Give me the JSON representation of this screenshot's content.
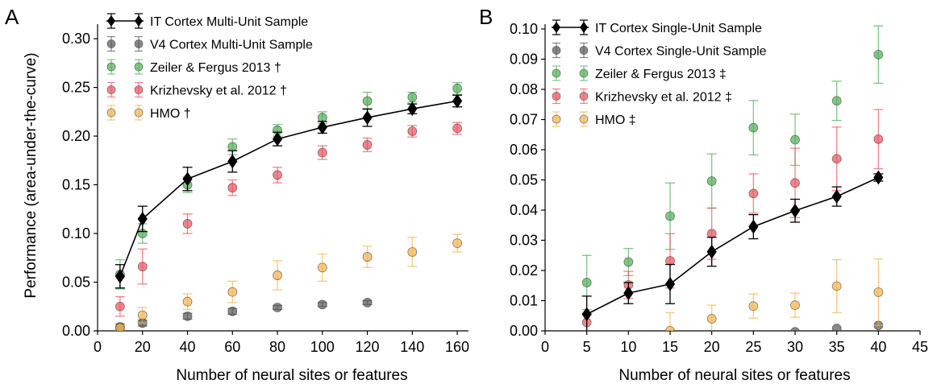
{
  "chart_data": [
    {
      "panel": "A",
      "type": "scatter",
      "xlabel": "Number of neural sites or features",
      "ylabel": "Performance (area-under-the-curve)",
      "xlim": [
        0,
        165
      ],
      "ylim": [
        0,
        0.31
      ],
      "xticks": [
        0,
        20,
        40,
        60,
        80,
        100,
        120,
        140,
        160
      ],
      "yticks": [
        0.0,
        0.05,
        0.1,
        0.15,
        0.2,
        0.25,
        0.3
      ],
      "xtick_labels": [
        "0",
        "20",
        "40",
        "60",
        "80",
        "100",
        "120",
        "140",
        "160"
      ],
      "ytick_labels": [
        "0.00",
        "0.05",
        "0.10",
        "0.15",
        "0.20",
        "0.25",
        "0.30"
      ],
      "legend_position": "top-left",
      "series": [
        {
          "name": "IT Cortex Multi-Unit Sample",
          "color": "#000000",
          "marker": "diamond",
          "line": true,
          "x": [
            10,
            20,
            40,
            60,
            80,
            100,
            120,
            140,
            160
          ],
          "y": [
            0.056,
            0.115,
            0.156,
            0.174,
            0.197,
            0.209,
            0.219,
            0.228,
            0.236
          ],
          "err": [
            0.012,
            0.013,
            0.012,
            0.011,
            0.007,
            0.006,
            0.009,
            0.005,
            0.006
          ]
        },
        {
          "name": "V4 Cortex Multi-Unit Sample",
          "color": "#555555",
          "marker": "circle",
          "line": false,
          "x": [
            10,
            20,
            40,
            60,
            80,
            100,
            120
          ],
          "y": [
            0.004,
            0.008,
            0.015,
            0.02,
            0.024,
            0.027,
            0.029
          ],
          "err": [
            0.003,
            0.003,
            0.003,
            0.003,
            0.002,
            0.002,
            0.002
          ]
        },
        {
          "name": "Zeiler & Fergus 2013 †",
          "color": "#4CAF50",
          "marker": "circle",
          "line": false,
          "x": [
            10,
            20,
            40,
            60,
            80,
            100,
            120,
            140,
            160
          ],
          "y": [
            0.058,
            0.1,
            0.15,
            0.189,
            0.206,
            0.219,
            0.236,
            0.24,
            0.249
          ],
          "err": [
            0.015,
            0.01,
            0.008,
            0.008,
            0.006,
            0.006,
            0.009,
            0.005,
            0.006
          ]
        },
        {
          "name": "Krizhevsky et al. 2012 †",
          "color": "#F0505A",
          "marker": "circle",
          "line": false,
          "x": [
            10,
            20,
            40,
            60,
            80,
            100,
            120,
            140,
            160
          ],
          "y": [
            0.025,
            0.066,
            0.11,
            0.147,
            0.16,
            0.183,
            0.191,
            0.205,
            0.208
          ],
          "err": [
            0.01,
            0.018,
            0.01,
            0.008,
            0.008,
            0.007,
            0.007,
            0.006,
            0.006
          ]
        },
        {
          "name": "HMO †",
          "color": "#F8B24A",
          "marker": "circle",
          "line": false,
          "x": [
            10,
            20,
            40,
            60,
            80,
            100,
            120,
            140,
            160
          ],
          "y": [
            0.003,
            0.016,
            0.03,
            0.04,
            0.057,
            0.065,
            0.076,
            0.081,
            0.09
          ],
          "err": [
            0.003,
            0.008,
            0.008,
            0.011,
            0.015,
            0.014,
            0.011,
            0.015,
            0.009
          ]
        }
      ]
    },
    {
      "panel": "B",
      "type": "scatter",
      "xlabel": "Number of neural sites or features",
      "ylabel": "",
      "xlim": [
        0,
        45
      ],
      "ylim": [
        0,
        0.1
      ],
      "xticks": [
        0,
        5,
        10,
        15,
        20,
        25,
        30,
        35,
        40,
        45
      ],
      "yticks": [
        0.0,
        0.01,
        0.02,
        0.03,
        0.04,
        0.05,
        0.06,
        0.07,
        0.08,
        0.09,
        0.1
      ],
      "xtick_labels": [
        "0",
        "5",
        "10",
        "15",
        "20",
        "25",
        "30",
        "35",
        "40",
        "45"
      ],
      "ytick_labels": [
        "0.00",
        "0.01",
        "0.02",
        "0.03",
        "0.04",
        "0.05",
        "0.06",
        "0.07",
        "0.08",
        "0.09",
        "0.10"
      ],
      "legend_position": "top-left",
      "series": [
        {
          "name": "IT Cortex Single-Unit Sample",
          "color": "#000000",
          "marker": "diamond",
          "line": true,
          "x": [
            5,
            10,
            15,
            20,
            25,
            30,
            35,
            40
          ],
          "y": [
            0.0055,
            0.0125,
            0.0155,
            0.0262,
            0.0345,
            0.0398,
            0.0445,
            0.0508
          ],
          "err": [
            0.006,
            0.0035,
            0.0065,
            0.0048,
            0.004,
            0.0038,
            0.0032,
            0.0012
          ]
        },
        {
          "name": "V4 Cortex Single-Unit Sample",
          "color": "#555555",
          "marker": "circle",
          "line": false,
          "x": [
            30,
            35,
            40
          ],
          "y": [
            -0.0003,
            0.0008,
            0.0018
          ],
          "err": [
            0.0,
            0.0,
            0.0
          ]
        },
        {
          "name": "Zeiler & Fergus 2013 ‡",
          "color": "#4CAF50",
          "marker": "circle",
          "line": false,
          "x": [
            5,
            10,
            15,
            20,
            25,
            30,
            35,
            40
          ],
          "y": [
            0.016,
            0.0228,
            0.038,
            0.0496,
            0.0673,
            0.0633,
            0.0762,
            0.0915
          ],
          "err": [
            0.009,
            0.0045,
            0.011,
            0.009,
            0.009,
            0.0085,
            0.0065,
            0.0095
          ]
        },
        {
          "name": "Krizhevsky et al. 2012 ‡",
          "color": "#F0505A",
          "marker": "circle",
          "line": false,
          "x": [
            5,
            10,
            15,
            20,
            25,
            30,
            35,
            40
          ],
          "y": [
            0.0028,
            0.0152,
            0.0232,
            0.0322,
            0.0455,
            0.049,
            0.057,
            0.0635
          ],
          "err": [
            0.003,
            0.0045,
            0.009,
            0.0085,
            0.0065,
            0.0115,
            0.0105,
            0.0098
          ]
        },
        {
          "name": "HMO ‡",
          "color": "#F8B24A",
          "marker": "circle",
          "line": false,
          "x": [
            15,
            20,
            25,
            30,
            35,
            40
          ],
          "y": [
            0.0,
            0.004,
            0.0082,
            0.0085,
            0.0148,
            0.0128
          ],
          "err": [
            0.006,
            0.0045,
            0.004,
            0.004,
            0.0088,
            0.011
          ]
        }
      ]
    }
  ]
}
